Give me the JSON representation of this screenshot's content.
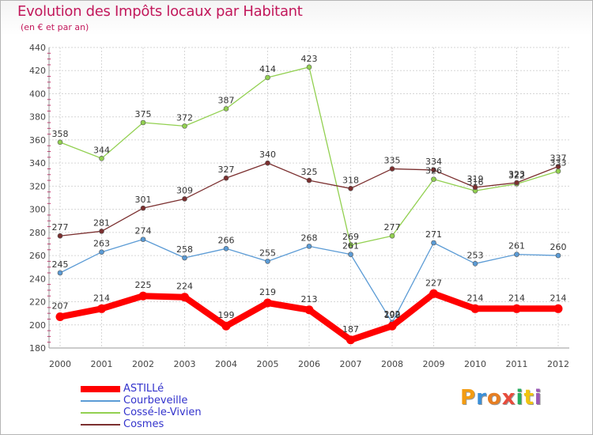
{
  "header": {
    "title": "Evolution des Impôts locaux par Habitant",
    "subtitle": "(en € et par an)"
  },
  "logo": {
    "text": "Proxiti",
    "colors": [
      "#f39c12",
      "#3a8fd8",
      "#e67e22",
      "#e74c3c",
      "#27ae60",
      "#f1c40f",
      "#9b59b6"
    ]
  },
  "chart_data": {
    "type": "line",
    "title": "Evolution des Impôts locaux par Habitant",
    "subtitle": "(en € et par an)",
    "x": [
      "2000",
      "2001",
      "2002",
      "2003",
      "2004",
      "2005",
      "2006",
      "2007",
      "2008",
      "2009",
      "2010",
      "2011",
      "2012"
    ],
    "ylim": [
      180,
      440
    ],
    "yticks": [
      "180",
      "200",
      "220",
      "240",
      "260",
      "280",
      "300",
      "320",
      "340",
      "360",
      "380",
      "400",
      "420",
      "440"
    ],
    "grid": true,
    "legend_position": "bottom-left",
    "series": [
      {
        "name": "ASTILLé",
        "color": "#ff0000",
        "values": [
          207,
          214,
          225,
          224,
          199,
          219,
          213,
          187,
          199,
          227,
          214,
          214,
          214
        ],
        "labels": [
          "207",
          "214",
          "225",
          "224",
          "199",
          "219",
          "213",
          "187",
          "199",
          "227",
          "214",
          "214",
          "214"
        ]
      },
      {
        "name": "Courbeveille",
        "color": "#5b9bd5",
        "values": [
          245,
          263,
          274,
          258,
          266,
          255,
          268,
          261,
          202,
          271,
          253,
          261,
          260
        ],
        "labels": [
          "245",
          "263",
          "274",
          "258",
          "266",
          "255",
          "268",
          "261",
          "202",
          "271",
          "253",
          "261",
          "260"
        ]
      },
      {
        "name": "Cossé-le-Vivien",
        "color": "#92d050",
        "values": [
          358,
          344,
          375,
          372,
          387,
          414,
          423,
          269,
          277,
          326,
          316,
          322,
          333
        ],
        "labels": [
          "358",
          "344",
          "375",
          "372",
          "387",
          "414",
          "423",
          "269",
          "277",
          "326",
          "316",
          "322",
          "333"
        ]
      },
      {
        "name": "Cosmes",
        "color": "#7b2f2f",
        "values": [
          277,
          281,
          301,
          309,
          327,
          340,
          325,
          318,
          335,
          334,
          319,
          323,
          337
        ],
        "labels": [
          "277",
          "281",
          "301",
          "309",
          "327",
          "340",
          "325",
          "318",
          "335",
          "334",
          "319",
          "323",
          "337"
        ]
      }
    ]
  }
}
